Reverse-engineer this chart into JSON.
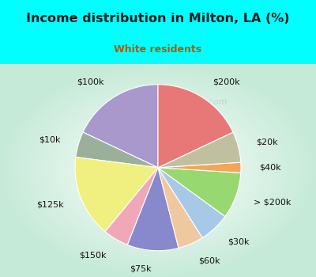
{
  "title": "Income distribution in Milton, LA (%)",
  "subtitle": "White residents",
  "title_color": "#1a1a1a",
  "subtitle_color": "#b05a00",
  "bg_outer": "#00ffff",
  "watermark": "City-Data.com",
  "labels": [
    "$100k",
    "$10k",
    "$125k",
    "$150k",
    "$75k",
    "$60k",
    "$30k",
    "> $200k",
    "$40k",
    "$20k",
    "$200k"
  ],
  "values": [
    18,
    5,
    16,
    5,
    10,
    5,
    6,
    9,
    2,
    6,
    18
  ],
  "colors": [
    "#a898cc",
    "#9ab09a",
    "#f0f080",
    "#f0a8b8",
    "#8888cc",
    "#f0c8a0",
    "#a8c8e8",
    "#98d870",
    "#f0a858",
    "#c0c0a0",
    "#e87878"
  ],
  "label_fontsize": 8.0,
  "startangle": 90
}
